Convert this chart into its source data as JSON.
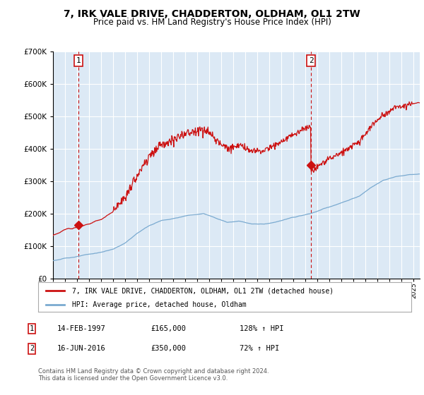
{
  "title": "7, IRK VALE DRIVE, CHADDERTON, OLDHAM, OL1 2TW",
  "subtitle": "Price paid vs. HM Land Registry's House Price Index (HPI)",
  "title_fontsize": 10,
  "subtitle_fontsize": 8.5,
  "background_color": "#ffffff",
  "plot_bg_color": "#dce9f5",
  "grid_color": "#ffffff",
  "ylim": [
    0,
    700000
  ],
  "yticks": [
    0,
    100000,
    200000,
    300000,
    400000,
    500000,
    600000,
    700000
  ],
  "xlim_start": 1995.0,
  "xlim_end": 2025.5,
  "purchase1_x": 1997.12,
  "purchase1_y": 165000,
  "purchase2_x": 2016.46,
  "purchase2_y": 350000,
  "property_line_color": "#cc1111",
  "hpi_line_color": "#7aaad0",
  "legend_property": "7, IRK VALE DRIVE, CHADDERTON, OLDHAM, OL1 2TW (detached house)",
  "legend_hpi": "HPI: Average price, detached house, Oldham",
  "annotation1_date": "14-FEB-1997",
  "annotation1_price": "£165,000",
  "annotation1_hpi": "128% ↑ HPI",
  "annotation2_date": "16-JUN-2016",
  "annotation2_price": "£350,000",
  "annotation2_hpi": "72% ↑ HPI",
  "footnote": "Contains HM Land Registry data © Crown copyright and database right 2024.\nThis data is licensed under the Open Government Licence v3.0."
}
